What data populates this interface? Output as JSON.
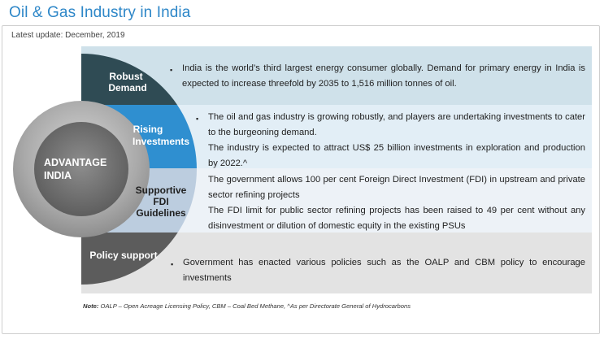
{
  "title": "Oil & Gas Industry in India",
  "latest_update": "Latest update: December, 2019",
  "center_label": [
    "ADVANTAGE",
    "INDIA"
  ],
  "rows": [
    {
      "heading": [
        "Robust",
        "Demand"
      ],
      "paragraphs": [
        "India is the world’s third largest energy consumer globally. Demand for primary energy in India is expected to increase threefold by 2035 to 1,516 million tonnes of oil."
      ],
      "band_color": "#2f4b54",
      "text_bg": "#cfe1ea"
    },
    {
      "heading": [
        "Rising",
        "Investments"
      ],
      "paragraphs": [
        "The oil and gas industry is growing robustly, and players are undertaking investments to cater to the burgeoning demand.",
        "The industry is expected to attract US$ 25 billion investments in exploration and production by 2022.^"
      ],
      "band_color": "#2f8fd0",
      "text_bg": "#e2eef6"
    },
    {
      "heading": [
        "Supportive",
        "FDI",
        "Guidelines"
      ],
      "paragraphs": [
        "The government allows 100 per cent Foreign Direct Investment (FDI) in upstream and private sector refining projects",
        "The FDI limit for public sector refining projects has been raised to 49 per cent without any disinvestment or dilution of domestic equity in the existing PSUs"
      ],
      "band_color": "#bccddf",
      "text_bg": "#edf2f7"
    },
    {
      "heading": [
        "Policy support"
      ],
      "paragraphs": [
        "Government has enacted various policies such as the OALP and CBM policy to encourage investments"
      ],
      "band_color": "#5c5c5c",
      "text_bg": "#e3e3e3"
    }
  ],
  "note_label": "Note:",
  "note_text": "OALP – Open Acreage Licensing Policy, CBM – Coal Bed Methane, ^As per Directorate General of Hydrocarbons"
}
